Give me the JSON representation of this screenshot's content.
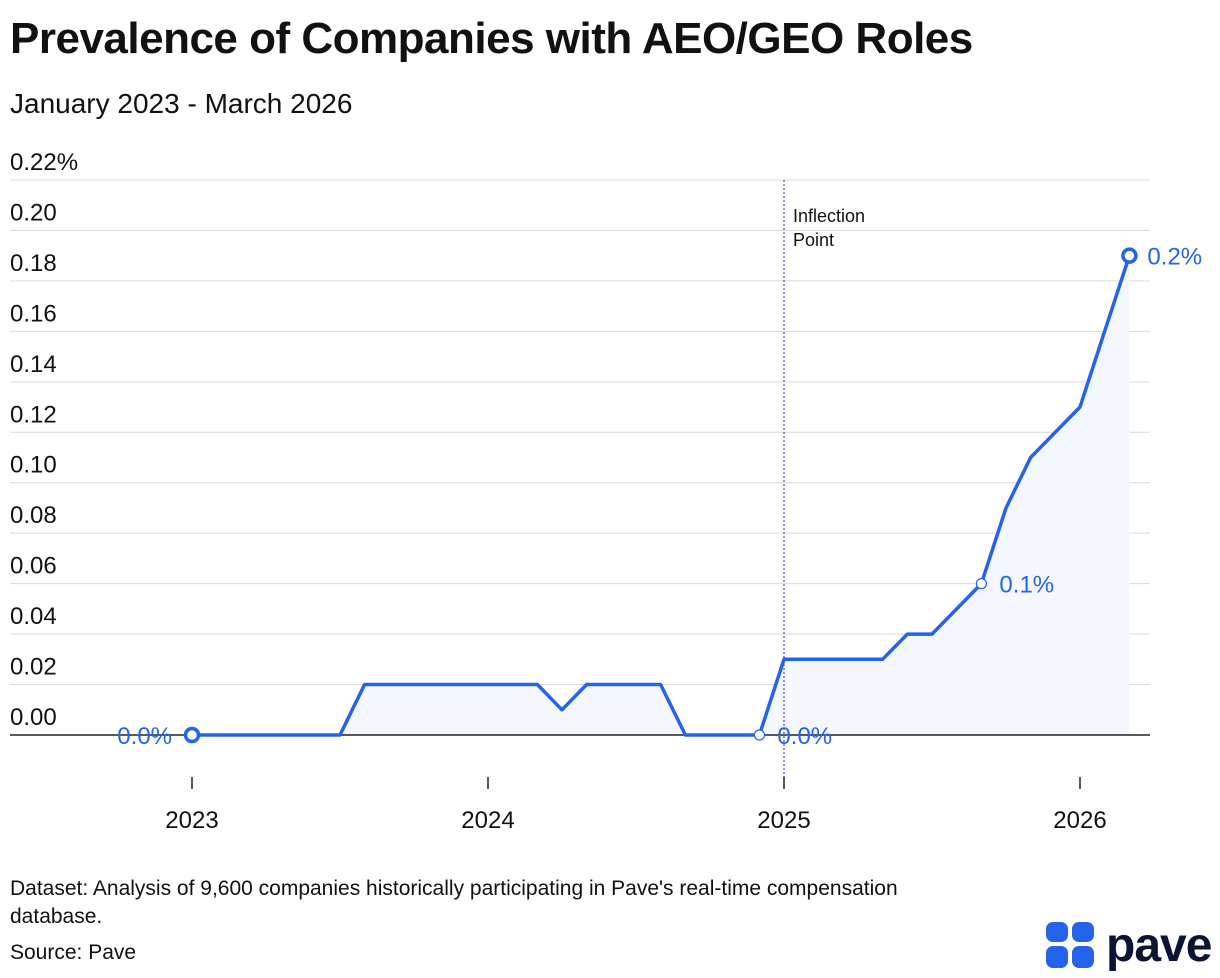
{
  "header": {
    "title": "Prevalence of Companies with AEO/GEO Roles",
    "subtitle": "January 2023 - March 2026"
  },
  "chart_data": {
    "type": "area",
    "ylim": [
      0,
      0.22
    ],
    "y_ticks": [
      0,
      0.02,
      0.04,
      0.06,
      0.08,
      0.1,
      0.12,
      0.14,
      0.16,
      0.18,
      0.2,
      0.22
    ],
    "y_tick_labels": [
      "0.00",
      "0.02",
      "0.04",
      "0.06",
      "0.08",
      "0.10",
      "0.12",
      "0.14",
      "0.16",
      "0.18",
      "0.20",
      "0.22%"
    ],
    "x_ticks": [
      2023,
      2024,
      2025,
      2026
    ],
    "x_tick_labels": [
      "2023",
      "2024",
      "2025",
      "2026"
    ],
    "grid": true,
    "series": [
      {
        "x": [
          2023.0,
          2023.5,
          2023.583,
          2024.0,
          2024.167,
          2024.25,
          2024.333,
          2024.583,
          2024.667,
          2024.917,
          2025.0,
          2025.333,
          2025.417,
          2025.5,
          2025.667,
          2025.75,
          2025.833,
          2026.0,
          2026.083,
          2026.167
        ],
        "y": [
          0.0,
          0.0,
          0.02,
          0.02,
          0.02,
          0.01,
          0.02,
          0.02,
          0.0,
          0.0,
          0.03,
          0.03,
          0.04,
          0.04,
          0.06,
          0.09,
          0.11,
          0.13,
          0.16,
          0.19
        ]
      }
    ],
    "point_labels": [
      {
        "x": 2023.0,
        "y": 0.0,
        "label": "0.0%",
        "marker": "large"
      },
      {
        "x": 2024.917,
        "y": 0.0,
        "label": "0.0%",
        "marker": "small"
      },
      {
        "x": 2025.667,
        "y": 0.06,
        "label": "0.1%",
        "marker": "small"
      },
      {
        "x": 2026.167,
        "y": 0.19,
        "label": "0.2%",
        "marker": "large"
      }
    ],
    "annotations": [
      {
        "x": 2025.0,
        "lines": [
          "Inflection",
          "Point"
        ]
      }
    ],
    "colors": {
      "line": "#2563eb",
      "fill": "#f4f7fd",
      "grid": "#d9d9d9",
      "axis": "#222222",
      "annotation_line": "#5b4fd6"
    }
  },
  "footer": {
    "dataset": "Dataset: Analysis of 9,600 companies historically participating in Pave's real-time compensation database.",
    "source": "Source: Pave"
  },
  "brand": {
    "name": "pave",
    "color": "#2563eb",
    "text_color": "#0b1533"
  }
}
